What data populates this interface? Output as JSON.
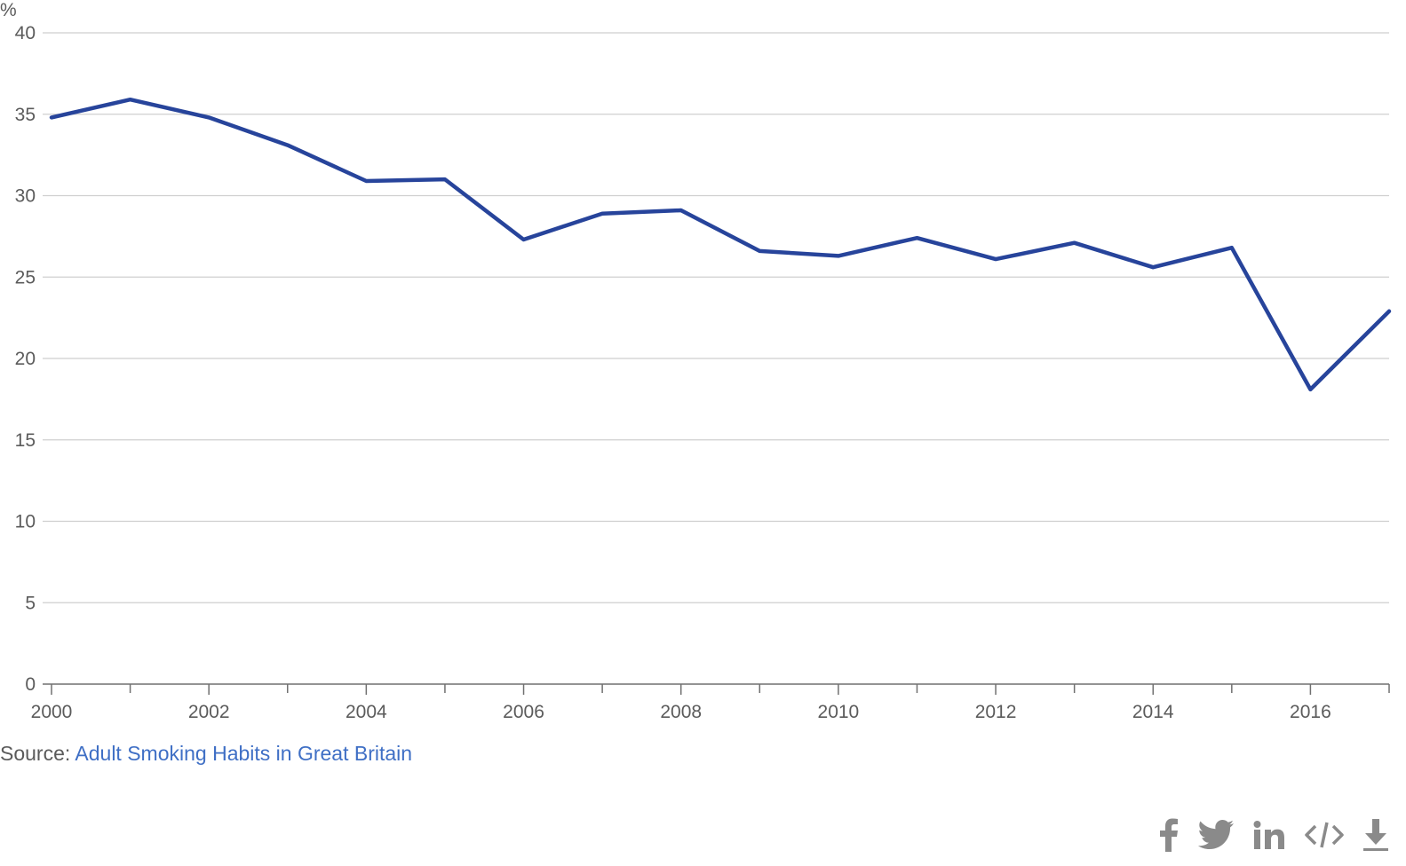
{
  "chart_data": {
    "type": "line",
    "ylabel": "%",
    "x": [
      2000,
      2001,
      2002,
      2003,
      2004,
      2005,
      2006,
      2007,
      2008,
      2009,
      2010,
      2011,
      2012,
      2013,
      2014,
      2015,
      2016,
      2017
    ],
    "series": [
      {
        "values": [
          34.8,
          35.9,
          34.8,
          33.1,
          30.9,
          31.0,
          27.3,
          28.9,
          29.1,
          26.6,
          26.3,
          27.4,
          26.1,
          27.1,
          25.6,
          26.8,
          18.1,
          22.9
        ],
        "color": "#27449b"
      }
    ],
    "xlim": [
      2000,
      2017
    ],
    "ylim": [
      0,
      40
    ],
    "x_ticks": [
      "2000",
      "2002",
      "2004",
      "2006",
      "2008",
      "2010",
      "2012",
      "2014",
      "2016"
    ],
    "y_ticks": [
      "0",
      "5",
      "10",
      "15",
      "20",
      "25",
      "30",
      "35",
      "40"
    ],
    "grid": true
  },
  "source": {
    "prefix": "Source: ",
    "link_text": "Adult Smoking Habits in Great Britain"
  },
  "share": {
    "icons": [
      "facebook-icon",
      "twitter-icon",
      "linkedin-icon",
      "embed-code-icon",
      "download-icon"
    ]
  }
}
